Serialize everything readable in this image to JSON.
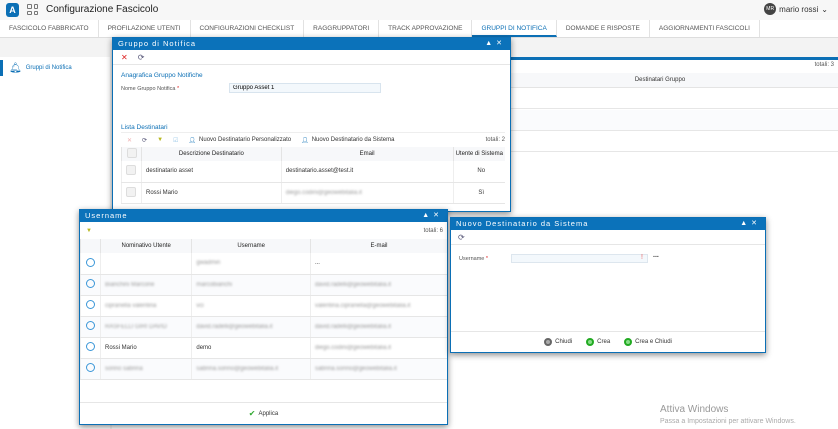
{
  "app": {
    "title": "Configurazione Fascicolo",
    "user_initials": "MR",
    "user_name": "mario rossi"
  },
  "tabs": [
    {
      "label": "FASCICOLO FABBRICATO"
    },
    {
      "label": "PROFILAZIONE UTENTI"
    },
    {
      "label": "CONFIGURAZIONI CHECKLIST"
    },
    {
      "label": "RAGGRUPPATORI"
    },
    {
      "label": "TRACK APPROVAZIONE"
    },
    {
      "label": "GRUPPI DI NOTIFICA",
      "active": true
    },
    {
      "label": "DOMANDE E RISPOSTE"
    },
    {
      "label": "AGGIORNAMENTI FASCICOLI"
    }
  ],
  "sidebar": {
    "item": "Gruppi di Notifica"
  },
  "main": {
    "totals": "totali: 3",
    "column": "Destinatari Gruppo"
  },
  "gruppo_dialog": {
    "title": "Gruppo di Notifica",
    "section1": "Anagrafica Gruppo Notifiche",
    "name_label": "Nome Gruppo Notifica",
    "name_value": "Gruppo Asset 1",
    "section2": "Lista Destinatari",
    "btn_personalizzato": "Nuovo Destinatario Personalizzato",
    "btn_sistema": "Nuovo Destinatario da Sistema",
    "totals": "totali: 2",
    "columns": [
      "Descrizione Destinatario",
      "Email",
      "Utente di Sistema"
    ],
    "rows": [
      {
        "desc": "destinatario asset",
        "email": "destinatario.asset@test.it",
        "sys": "No",
        "blur": false
      },
      {
        "desc": "Rossi Mario",
        "email": "diego.codini@geowebitalia.it",
        "sys": "Sì",
        "blur": true
      }
    ]
  },
  "username_dialog": {
    "title": "Username",
    "totals": "totali: 6",
    "columns": [
      "Nominativo Utente",
      "Username",
      "E-mail"
    ],
    "rows": [
      {
        "name": "",
        "user": "gwadmin",
        "email": "..."
      },
      {
        "name": "Bianchini Marcone",
        "user": "marcobianchi",
        "email": "david.radelli@geowebitalia.it"
      },
      {
        "name": "cipranella valentina",
        "user": "vci",
        "email": "valentina.cipranella@geowebitalia.it"
      },
      {
        "name": "RASFELLI GIRI DAVID",
        "user": "david.radelli@geowebitalia.it",
        "email": "david.radelli@geowebitalia.it"
      },
      {
        "name": "Rossi Mario",
        "user": "demo",
        "email": "diego.codini@geowebitalia.it"
      },
      {
        "name": "sonno sabrina",
        "user": "sabrina.sonno@geowebitalia.it",
        "email": "sabrina.sonno@geowebitalia.it"
      }
    ],
    "apply": "Applica"
  },
  "sistema_dialog": {
    "title": "Nuovo Destinatario da Sistema",
    "username_label": "Username",
    "username_value": "",
    "lookup": "...",
    "buttons": {
      "close": "Chiudi",
      "create": "Crea",
      "create_close": "Crea e Chiudi"
    }
  },
  "watermark": {
    "line1": "Attiva Windows",
    "line2": "Passa a Impostazioni per attivare Windows."
  }
}
